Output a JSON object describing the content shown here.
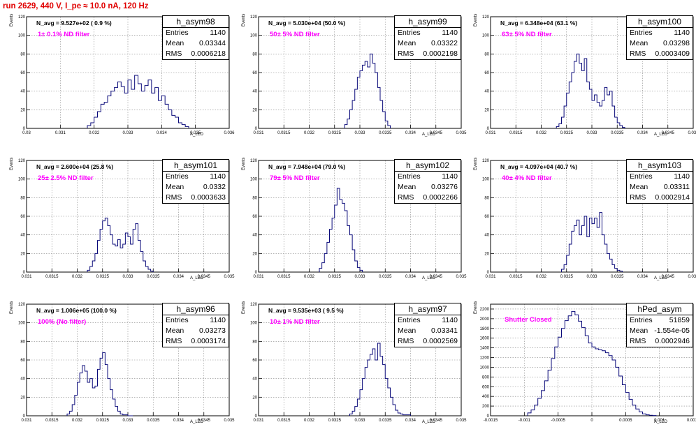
{
  "header": {
    "run_title": "run 2629,   440 V, I_pe ≈ 10.0 nA, 120 Hz"
  },
  "labels": {
    "entries": "Entries",
    "mean": "Mean",
    "rms": "RMS",
    "y_axis": "Events",
    "x_axis": "A_LED"
  },
  "colors": {
    "title": "#e00000",
    "filter_text": "#ff00ff",
    "histogram": "#0a0a7a"
  },
  "chart_data": [
    {
      "type": "bar",
      "name": "h_asym98",
      "navg": "N_avg = 9.527e+02 ( 0.9 %)",
      "filter": "1± 0.1% ND filter",
      "stats": {
        "entries": "1140",
        "mean": "0.03344",
        "rms": "0.0006218"
      },
      "xlim": [
        0.03,
        0.036
      ],
      "xticks": [
        "0.03",
        "0.031",
        "0.032",
        "0.033",
        "0.034",
        "0.035",
        "0.036"
      ],
      "ylim": [
        0,
        120
      ],
      "yticks": [
        "0",
        "20",
        "40",
        "60",
        "80",
        "100",
        "120"
      ],
      "x": [
        0.0318,
        0.0319,
        0.032,
        0.0321,
        0.0322,
        0.0323,
        0.0324,
        0.0325,
        0.0326,
        0.0327,
        0.0328,
        0.0329,
        0.033,
        0.0331,
        0.0332,
        0.0333,
        0.0334,
        0.0335,
        0.0336,
        0.0337,
        0.0338,
        0.0339,
        0.034,
        0.0341,
        0.0342,
        0.0343,
        0.0344,
        0.0345,
        0.0346,
        0.0347
      ],
      "y": [
        3,
        6,
        12,
        18,
        26,
        28,
        35,
        40,
        44,
        50,
        45,
        38,
        52,
        42,
        57,
        48,
        40,
        46,
        52,
        38,
        44,
        30,
        35,
        26,
        20,
        14,
        12,
        6,
        4,
        2
      ]
    },
    {
      "type": "bar",
      "name": "h_asym99",
      "navg": "N_avg = 5.030e+04 (50.0 %)",
      "filter": "50± 5% ND filter",
      "stats": {
        "entries": "1140",
        "mean": "0.03322",
        "rms": "0.0002198"
      },
      "xlim": [
        0.031,
        0.035
      ],
      "xticks": [
        "0.031",
        "0.0315",
        "0.032",
        "0.0325",
        "0.033",
        "0.0335",
        "0.034",
        "0.0345",
        "0.035"
      ],
      "ylim": [
        0,
        120
      ],
      "yticks": [
        "0",
        "20",
        "40",
        "60",
        "80",
        "100",
        "120"
      ],
      "x": [
        0.0327,
        0.03275,
        0.0328,
        0.03285,
        0.0329,
        0.03295,
        0.033,
        0.03305,
        0.0331,
        0.03315,
        0.0332,
        0.03325,
        0.0333,
        0.03335,
        0.0334,
        0.03345,
        0.0335,
        0.03355
      ],
      "y": [
        4,
        10,
        20,
        30,
        42,
        55,
        62,
        68,
        72,
        66,
        80,
        70,
        60,
        44,
        30,
        18,
        8,
        3
      ]
    },
    {
      "type": "bar",
      "name": "h_asym100",
      "navg": "N_avg = 6.348e+04 (63.1 %)",
      "filter": "63± 5% ND filter",
      "stats": {
        "entries": "1140",
        "mean": "0.03298",
        "rms": "0.0003409"
      },
      "xlim": [
        0.031,
        0.035
      ],
      "xticks": [
        "0.031",
        "0.0315",
        "0.032",
        "0.0325",
        "0.033",
        "0.0335",
        "0.034",
        "0.0345",
        "0.035"
      ],
      "ylim": [
        0,
        120
      ],
      "yticks": [
        "0",
        "20",
        "40",
        "60",
        "80",
        "100",
        "120"
      ],
      "x": [
        0.0323,
        0.03235,
        0.0324,
        0.03245,
        0.0325,
        0.03255,
        0.0326,
        0.03265,
        0.0327,
        0.03275,
        0.0328,
        0.03285,
        0.0329,
        0.03295,
        0.033,
        0.03305,
        0.0331,
        0.03315,
        0.0332,
        0.03325,
        0.0333,
        0.03335,
        0.0334,
        0.03345,
        0.0335,
        0.03355,
        0.0336
      ],
      "y": [
        2,
        5,
        12,
        24,
        38,
        50,
        60,
        72,
        80,
        70,
        62,
        75,
        50,
        42,
        30,
        36,
        28,
        24,
        30,
        44,
        36,
        40,
        24,
        12,
        6,
        3,
        1
      ]
    },
    {
      "type": "bar",
      "name": "h_asym101",
      "navg": "N_avg = 2.600e+04 (25.8 %)",
      "filter": "25± 2.5% ND filter",
      "stats": {
        "entries": "1140",
        "mean": "0.0332",
        "rms": "0.0003633"
      },
      "xlim": [
        0.031,
        0.035
      ],
      "xticks": [
        "0.031",
        "0.0315",
        "0.032",
        "0.0325",
        "0.033",
        "0.0335",
        "0.034",
        "0.0345",
        "0.035"
      ],
      "ylim": [
        0,
        120
      ],
      "yticks": [
        "0",
        "20",
        "40",
        "60",
        "80",
        "100",
        "120"
      ],
      "x": [
        0.0322,
        0.03225,
        0.0323,
        0.03235,
        0.0324,
        0.03245,
        0.0325,
        0.03255,
        0.0326,
        0.03265,
        0.0327,
        0.03275,
        0.0328,
        0.03285,
        0.0329,
        0.03295,
        0.033,
        0.03305,
        0.0331,
        0.03315,
        0.0332,
        0.03325,
        0.0333,
        0.03335,
        0.0334,
        0.03345
      ],
      "y": [
        2,
        6,
        12,
        20,
        34,
        46,
        55,
        58,
        50,
        40,
        30,
        28,
        35,
        26,
        30,
        42,
        38,
        30,
        46,
        52,
        34,
        22,
        12,
        6,
        3,
        1
      ]
    },
    {
      "type": "bar",
      "name": "h_asym102",
      "navg": "N_avg = 7.948e+04 (79.0 %)",
      "filter": "79± 5% ND filter",
      "stats": {
        "entries": "1140",
        "mean": "0.03276",
        "rms": "0.0002266"
      },
      "xlim": [
        0.031,
        0.035
      ],
      "xticks": [
        "0.031",
        "0.0315",
        "0.032",
        "0.0325",
        "0.033",
        "0.0335",
        "0.034",
        "0.0345",
        "0.035"
      ],
      "ylim": [
        0,
        120
      ],
      "yticks": [
        "0",
        "20",
        "40",
        "60",
        "80",
        "100",
        "120"
      ],
      "x": [
        0.0322,
        0.03225,
        0.0323,
        0.03235,
        0.0324,
        0.03245,
        0.0325,
        0.03255,
        0.0326,
        0.03265,
        0.0327,
        0.03275,
        0.0328,
        0.03285,
        0.0329,
        0.03295,
        0.033
      ],
      "y": [
        4,
        10,
        20,
        32,
        46,
        58,
        72,
        90,
        78,
        74,
        66,
        50,
        40,
        24,
        12,
        5,
        2
      ]
    },
    {
      "type": "bar",
      "name": "h_asym103",
      "navg": "N_avg = 4.097e+04 (40.7 %)",
      "filter": "40± 4% ND filter",
      "stats": {
        "entries": "1140",
        "mean": "0.03311",
        "rms": "0.0002914"
      },
      "xlim": [
        0.031,
        0.035
      ],
      "xticks": [
        "0.031",
        "0.0315",
        "0.032",
        "0.0325",
        "0.033",
        "0.0335",
        "0.034",
        "0.0345",
        "0.035"
      ],
      "ylim": [
        0,
        120
      ],
      "yticks": [
        "0",
        "20",
        "40",
        "60",
        "80",
        "100",
        "120"
      ],
      "x": [
        0.0324,
        0.03245,
        0.0325,
        0.03255,
        0.0326,
        0.03265,
        0.0327,
        0.03275,
        0.0328,
        0.03285,
        0.0329,
        0.03295,
        0.033,
        0.03305,
        0.0331,
        0.03315,
        0.0332,
        0.03325,
        0.0333,
        0.03335,
        0.0334,
        0.03345,
        0.0335,
        0.03355
      ],
      "y": [
        3,
        8,
        18,
        30,
        44,
        50,
        56,
        40,
        50,
        60,
        38,
        58,
        52,
        58,
        48,
        64,
        40,
        30,
        20,
        14,
        8,
        4,
        2,
        1
      ]
    },
    {
      "type": "bar",
      "name": "h_asym96",
      "navg": "N_avg = 1.006e+05 (100.0 %)",
      "filter": "100% (No filter)",
      "stats": {
        "entries": "1140",
        "mean": "0.03273",
        "rms": "0.0003174"
      },
      "xlim": [
        0.031,
        0.035
      ],
      "xticks": [
        "0.031",
        "0.0315",
        "0.032",
        "0.0325",
        "0.033",
        "0.0335",
        "0.034",
        "0.0345",
        "0.035"
      ],
      "ylim": [
        0,
        120
      ],
      "yticks": [
        "0",
        "20",
        "40",
        "60",
        "80",
        "100",
        "120"
      ],
      "x": [
        0.0318,
        0.03185,
        0.0319,
        0.03195,
        0.032,
        0.03205,
        0.0321,
        0.03215,
        0.0322,
        0.03225,
        0.0323,
        0.03235,
        0.0324,
        0.03245,
        0.0325,
        0.03255,
        0.0326,
        0.03265,
        0.0327,
        0.03275,
        0.0328,
        0.03285,
        0.0329,
        0.03295,
        0.033,
        0.03305
      ],
      "y": [
        2,
        5,
        12,
        22,
        36,
        46,
        54,
        48,
        36,
        40,
        30,
        32,
        50,
        62,
        68,
        55,
        40,
        28,
        18,
        10,
        5,
        2,
        1,
        1,
        0,
        0
      ]
    },
    {
      "type": "bar",
      "name": "h_asym97",
      "navg": "N_avg = 9.535e+03 ( 9.5 %)",
      "filter": "10± 1% ND filter",
      "stats": {
        "entries": "1140",
        "mean": "0.03341",
        "rms": "0.0002569"
      },
      "xlim": [
        0.031,
        0.035
      ],
      "xticks": [
        "0.031",
        "0.0315",
        "0.032",
        "0.0325",
        "0.033",
        "0.0335",
        "0.034",
        "0.0345",
        "0.035"
      ],
      "ylim": [
        0,
        120
      ],
      "yticks": [
        "0",
        "20",
        "40",
        "60",
        "80",
        "100",
        "120"
      ],
      "x": [
        0.0328,
        0.03285,
        0.0329,
        0.03295,
        0.033,
        0.03305,
        0.0331,
        0.03315,
        0.0332,
        0.03325,
        0.0333,
        0.03335,
        0.0334,
        0.03345,
        0.0335,
        0.03355,
        0.0336,
        0.03365,
        0.0337,
        0.03375,
        0.0338,
        0.03385,
        0.0339,
        0.03395
      ],
      "y": [
        2,
        5,
        10,
        18,
        28,
        40,
        52,
        60,
        66,
        72,
        60,
        78,
        64,
        55,
        40,
        30,
        20,
        12,
        6,
        3,
        2,
        1,
        1,
        1
      ]
    },
    {
      "type": "bar",
      "name": "hPed_asym",
      "navg": "",
      "filter": "Shutter Closed",
      "stats": {
        "entries": "51859",
        "mean": "-1.554e-05",
        "rms": "0.0002946"
      },
      "xlim": [
        -0.0015,
        0.0015
      ],
      "xticks": [
        "-0.0015",
        "-0.001",
        "-0.0005",
        "0",
        "0.0005",
        "0.001",
        "0.0015"
      ],
      "ylim": [
        0,
        2300
      ],
      "yticks": [
        "0",
        "200",
        "400",
        "600",
        "800",
        "1000",
        "1200",
        "1400",
        "1600",
        "1800",
        "2000",
        "2200"
      ],
      "x": [
        -0.00095,
        -0.0009,
        -0.00085,
        -0.0008,
        -0.00075,
        -0.0007,
        -0.00065,
        -0.0006,
        -0.00055,
        -0.0005,
        -0.00045,
        -0.0004,
        -0.00035,
        -0.0003,
        -0.00025,
        -0.0002,
        -0.00015,
        -0.0001,
        -5e-05,
        0,
        5e-05,
        0.0001,
        0.00015,
        0.0002,
        0.00025,
        0.0003,
        0.00035,
        0.0004,
        0.00045,
        0.0005,
        0.00055,
        0.0006,
        0.00065,
        0.0007,
        0.00075,
        0.0008,
        0.00085,
        0.0009
      ],
      "y": [
        60,
        120,
        220,
        360,
        520,
        720,
        940,
        1180,
        1420,
        1620,
        1800,
        1960,
        2060,
        2150,
        2080,
        1950,
        1820,
        1650,
        1500,
        1420,
        1380,
        1360,
        1340,
        1300,
        1240,
        1150,
        1000,
        820,
        640,
        480,
        340,
        220,
        140,
        80,
        40,
        20,
        10,
        5
      ]
    }
  ]
}
